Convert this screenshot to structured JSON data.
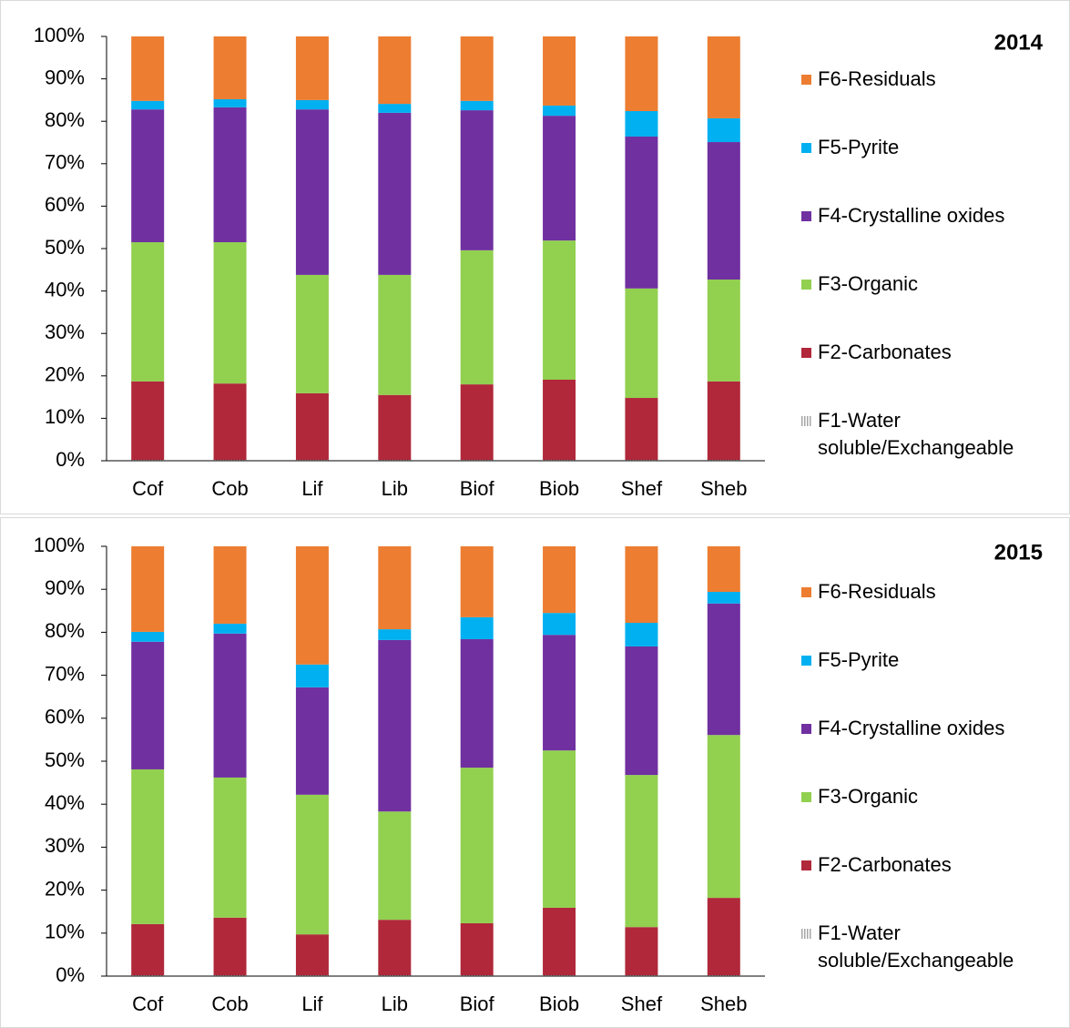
{
  "chart_data": [
    {
      "type": "stacked_bar",
      "title": "2014",
      "categories": [
        "Cof",
        "Cob",
        "Lif",
        "Lib",
        "Biof",
        "Biob",
        "Shef",
        "Sheb"
      ],
      "series": [
        {
          "name": "F1-Water soluble/Exchangeable",
          "color": "#a6a6a6",
          "values": [
            0.2,
            0.2,
            0.2,
            0.2,
            0.2,
            0.2,
            0.2,
            0.2
          ]
        },
        {
          "name": "F2-Carbonates",
          "color": "#b0283a",
          "values": [
            18.5,
            18.0,
            15.7,
            15.3,
            17.8,
            18.9,
            14.6,
            18.5
          ]
        },
        {
          "name": "F3-Organic",
          "color": "#92d050",
          "values": [
            32.8,
            33.3,
            27.9,
            28.3,
            31.6,
            32.8,
            25.8,
            24.0
          ]
        },
        {
          "name": "F4-Crystalline oxides",
          "color": "#7030a0",
          "values": [
            31.3,
            31.8,
            39.0,
            38.2,
            33.0,
            29.4,
            35.8,
            32.4
          ]
        },
        {
          "name": "F5-Pyrite",
          "color": "#00b0f0",
          "values": [
            2.0,
            1.9,
            2.2,
            2.1,
            2.2,
            2.4,
            6.0,
            5.6
          ]
        },
        {
          "name": "F6-Residuals",
          "color": "#ed7d31",
          "values": [
            15.2,
            14.8,
            15.0,
            15.9,
            15.2,
            16.3,
            17.6,
            19.3
          ]
        }
      ],
      "ylim": [
        0,
        100
      ],
      "yticks": [
        {
          "value": 0,
          "label": "0%"
        },
        {
          "value": 10,
          "label": "10%"
        },
        {
          "value": 20,
          "label": "20%"
        },
        {
          "value": 30,
          "label": "30%"
        },
        {
          "value": 40,
          "label": "40%"
        },
        {
          "value": 50,
          "label": "50%"
        },
        {
          "value": 60,
          "label": "60%"
        },
        {
          "value": 70,
          "label": "70%"
        },
        {
          "value": 80,
          "label": "80%"
        },
        {
          "value": 90,
          "label": "90%"
        },
        {
          "value": 100,
          "label": "100%"
        }
      ],
      "grid": false,
      "legend": "right"
    },
    {
      "type": "stacked_bar",
      "title": "2015",
      "categories": [
        "Cof",
        "Cob",
        "Lif",
        "Lib",
        "Biof",
        "Biob",
        "Shef",
        "Sheb"
      ],
      "series": [
        {
          "name": "F1-Water soluble/Exchangeable",
          "color": "#a6a6a6",
          "values": [
            0.2,
            0.2,
            0.2,
            0.2,
            0.2,
            0.2,
            0.2,
            0.2
          ]
        },
        {
          "name": "F2-Carbonates",
          "color": "#b0283a",
          "values": [
            11.9,
            13.4,
            9.5,
            12.9,
            12.1,
            15.7,
            11.2,
            18.0
          ]
        },
        {
          "name": "F3-Organic",
          "color": "#92d050",
          "values": [
            36.0,
            32.6,
            32.5,
            25.2,
            36.2,
            36.6,
            35.4,
            37.9
          ]
        },
        {
          "name": "F4-Crystalline oxides",
          "color": "#7030a0",
          "values": [
            29.7,
            33.5,
            25.0,
            39.9,
            29.9,
            26.9,
            29.9,
            30.6
          ]
        },
        {
          "name": "F5-Pyrite",
          "color": "#00b0f0",
          "values": [
            2.3,
            2.3,
            5.3,
            2.5,
            5.1,
            5.1,
            5.5,
            2.7
          ]
        },
        {
          "name": "F6-Residuals",
          "color": "#ed7d31",
          "values": [
            19.9,
            18.0,
            27.5,
            19.3,
            16.5,
            15.5,
            17.8,
            10.6
          ]
        }
      ],
      "ylim": [
        0,
        100
      ],
      "yticks": [
        {
          "value": 0,
          "label": "0%"
        },
        {
          "value": 10,
          "label": "10%"
        },
        {
          "value": 20,
          "label": "20%"
        },
        {
          "value": 30,
          "label": "30%"
        },
        {
          "value": 40,
          "label": "40%"
        },
        {
          "value": 50,
          "label": "50%"
        },
        {
          "value": 60,
          "label": "60%"
        },
        {
          "value": 70,
          "label": "70%"
        },
        {
          "value": 80,
          "label": "80%"
        },
        {
          "value": 90,
          "label": "90%"
        },
        {
          "value": 100,
          "label": "100%"
        }
      ],
      "grid": false,
      "legend": "right"
    }
  ]
}
